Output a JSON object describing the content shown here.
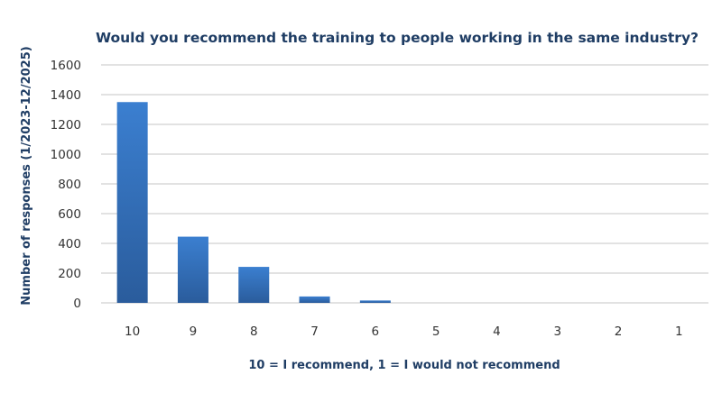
{
  "chart_data": {
    "type": "bar",
    "title": "Would you recommend the training to people working in the same industry?",
    "xlabel": "10 = I recommend, 1 = I would not recommend",
    "ylabel": "Number of responses  (1/2023-12/2025)",
    "categories": [
      "10",
      "9",
      "8",
      "7",
      "6",
      "5",
      "4",
      "3",
      "2",
      "1"
    ],
    "values": [
      1350,
      445,
      242,
      43,
      16,
      0,
      0,
      0,
      0,
      0
    ],
    "ylim": [
      0,
      1600
    ],
    "yticks": [
      0,
      200,
      400,
      600,
      800,
      1000,
      1200,
      1400,
      1600
    ],
    "grid": true,
    "legend": "none",
    "colors": {
      "bar_top": "#3b7fd0",
      "bar_bottom": "#2a5c9c",
      "grid": "#d9d9d9",
      "title": "#1f3d64"
    }
  }
}
